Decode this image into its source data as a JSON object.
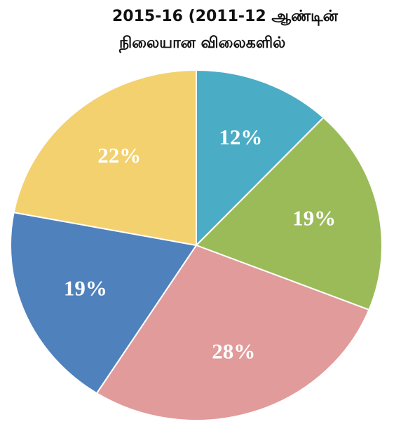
{
  "chart_data": {
    "type": "pie",
    "title": [
      "2015-16 (2011-12 ஆண்டின்",
      "நிலையான விலைகளில்"
    ],
    "values": [
      12,
      19,
      28,
      19,
      22
    ],
    "value_labels": [
      "12%",
      "19%",
      "28%",
      "19%",
      "22%"
    ],
    "colors": [
      "#4bacc6",
      "#9bbb59",
      "#e09b9a",
      "#4f81bd",
      "#f2d16e"
    ]
  }
}
